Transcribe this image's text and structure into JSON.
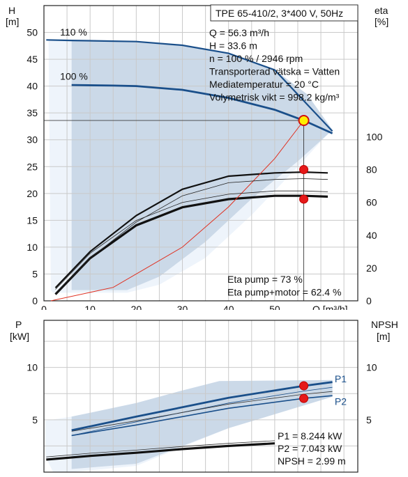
{
  "chart_data": [
    {
      "type": "line",
      "title": "TPE 65-410/2, 3*400 V, 50Hz",
      "xlabel": "Q [m³/h]",
      "ylabel_left": [
        "H",
        "[m]"
      ],
      "ylabel_right": [
        "eta",
        "[%]"
      ],
      "xlim": [
        0,
        68
      ],
      "ylim_left": [
        0,
        55
      ],
      "ylim_right": [
        0,
        180
      ],
      "x_ticks": [
        "0",
        "10",
        "20",
        "30",
        "40",
        "50"
      ],
      "y_ticks_left": [
        "0",
        "5",
        "10",
        "15",
        "20",
        "25",
        "30",
        "35",
        "40",
        "45",
        "50"
      ],
      "y_ticks_right": [
        "0",
        "20",
        "40",
        "60",
        "80",
        "100"
      ],
      "grid": true,
      "curve_labels": [
        "110 %",
        "100 %"
      ],
      "series": [
        {
          "name": "110 %",
          "axis": "left",
          "x": [
            0.5,
            6,
            20,
            30,
            40,
            50,
            62.5
          ],
          "y": [
            48.6,
            48.5,
            48.3,
            47.6,
            46.1,
            43,
            31.6
          ]
        },
        {
          "name": "100 %",
          "axis": "left",
          "x": [
            6,
            15,
            20,
            30,
            40,
            50,
            56.3,
            62.5
          ],
          "y": [
            40.2,
            40.1,
            40.0,
            39.3,
            37.8,
            35.6,
            33.6,
            31.2
          ]
        },
        {
          "axis": "right",
          "x": [
            2.5,
            10,
            20,
            30,
            40,
            50,
            56.3,
            61.5
          ],
          "y": [
            8,
            30,
            52,
            68,
            76,
            78,
            78.5,
            78
          ]
        },
        {
          "axis": "right",
          "x": [
            2.5,
            10,
            20,
            30,
            40,
            50,
            56.3,
            61.5
          ],
          "y": [
            4,
            26,
            46,
            57,
            62,
            64,
            64,
            63.5
          ]
        },
        {
          "axis": "left",
          "x": [
            1.5,
            15,
            30,
            40,
            50,
            56.3
          ],
          "y": [
            0,
            2.5,
            10,
            17.5,
            26.5,
            33.6
          ]
        }
      ],
      "operating_point": {
        "x": 56.3,
        "y": 33.6,
        "eta_motor_x": 56.3,
        "eta_motor_y": 80,
        "eta_pump_y": 62
      },
      "info_lines": [
        "Q = 56.3 m³/h",
        "H = 33.6 m",
        "n = 100 % / 2946 rpm",
        "Transporterad vätska = Vatten",
        "Mediatemperatur = 20 °C",
        "Volymetrisk vikt = 998.2 kg/m³"
      ],
      "eta_lines": [
        "Eta pump = 73 %",
        "Eta pump+motor = 62.4 %"
      ]
    },
    {
      "type": "line",
      "xlabel": "",
      "ylabel_left": [
        "P",
        "[kW]"
      ],
      "ylabel_right": [
        "NPSH",
        "[m]"
      ],
      "xlim": [
        0,
        68
      ],
      "ylim_left": [
        0,
        14.5
      ],
      "ylim_right": [
        0,
        14.5
      ],
      "y_ticks_left": [
        "5",
        "10"
      ],
      "y_ticks_right": [
        "5",
        "10"
      ],
      "grid": true,
      "series": [
        {
          "name": "P1",
          "axis": "left",
          "x": [
            6,
            20,
            40,
            56.3,
            62.5
          ],
          "y": [
            4.0,
            5.3,
            7.1,
            8.244,
            8.6
          ]
        },
        {
          "name": "P2",
          "axis": "left",
          "x": [
            6,
            20,
            40,
            56.3,
            62.5
          ],
          "y": [
            3.5,
            4.5,
            6.1,
            7.043,
            7.3
          ]
        },
        {
          "axis": "right",
          "x": [
            0.5,
            10,
            20,
            30,
            40,
            50
          ],
          "y": [
            1.2,
            1.55,
            1.85,
            2.2,
            2.5,
            2.75
          ]
        }
      ],
      "points": [
        {
          "x": 56.3,
          "y": 8.244
        },
        {
          "x": 56.3,
          "y": 7.043
        }
      ],
      "info_lines": [
        "P1 = 8.244 kW",
        "P2 = 7.043 kW",
        "NPSH = 2.99 m"
      ]
    }
  ]
}
